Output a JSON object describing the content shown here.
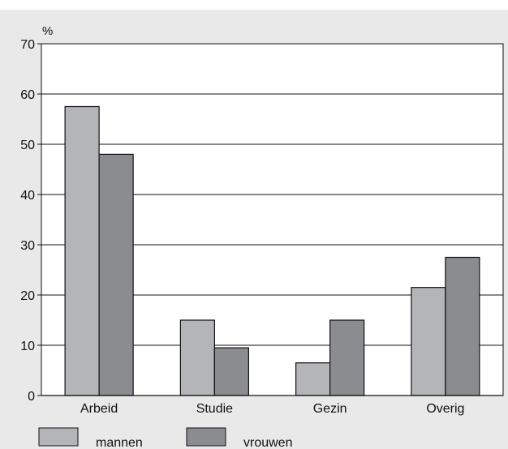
{
  "chart_data": {
    "type": "bar",
    "unit_label": "%",
    "categories": [
      "Arbeid",
      "Studie",
      "Gezin",
      "Overig"
    ],
    "series": [
      {
        "name": "mannen",
        "values": [
          57.5,
          15,
          6.5,
          21.5
        ],
        "color": "#b4b5b8"
      },
      {
        "name": "vrouwen",
        "values": [
          48,
          9.5,
          15,
          27.5
        ],
        "color": "#8b8c8f"
      }
    ],
    "ylim": [
      0,
      70
    ],
    "yticks": [
      0,
      10,
      20,
      30,
      40,
      50,
      60,
      70
    ],
    "grid": true,
    "legend_position": "bottom",
    "colors": {
      "panel": "#e9e9e9",
      "plot": "#ffffff",
      "grid": "#111111"
    }
  }
}
